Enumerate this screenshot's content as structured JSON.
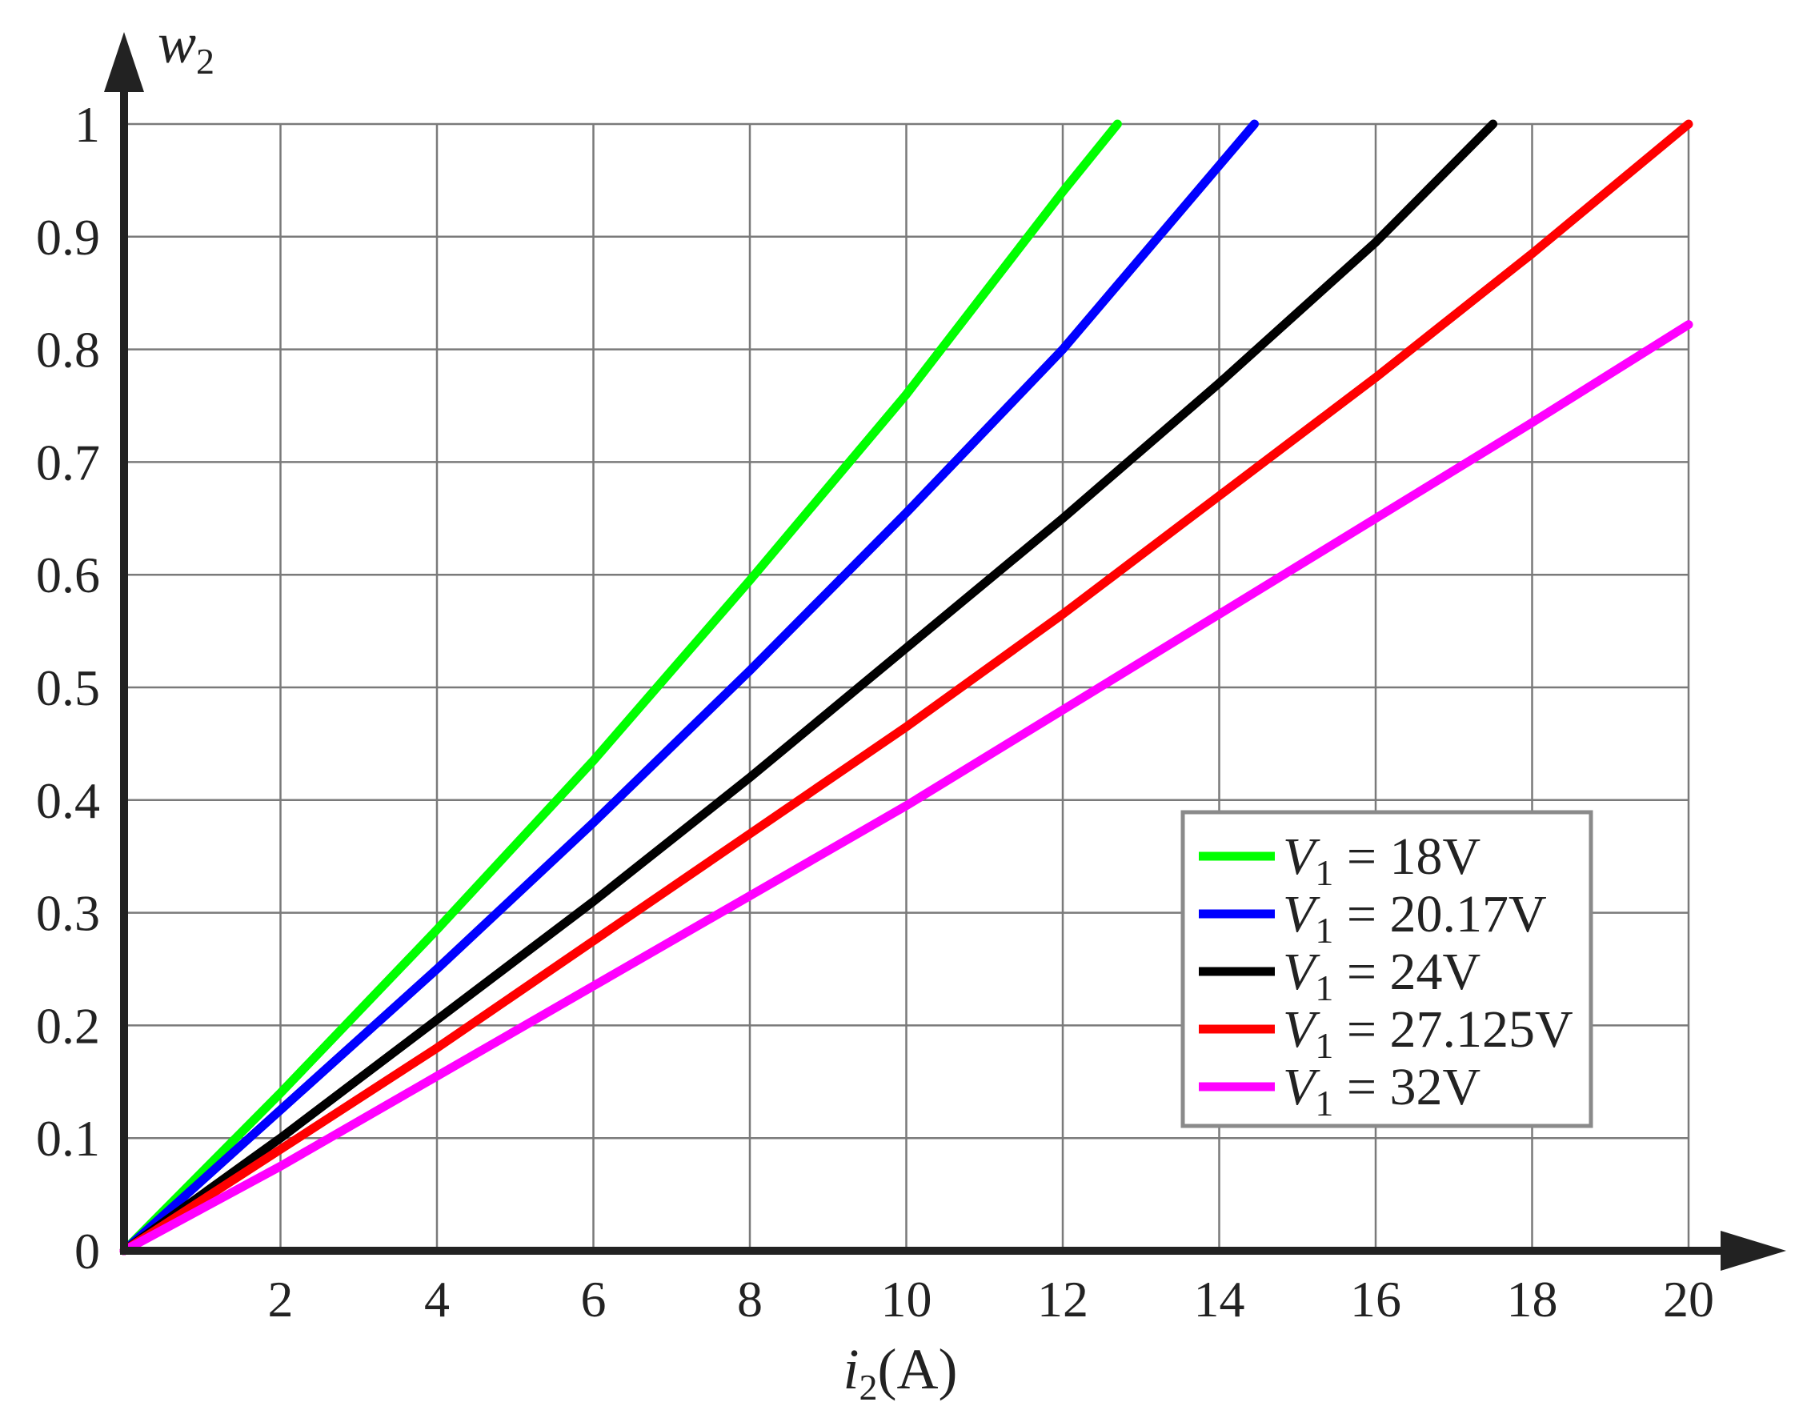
{
  "chart_data": {
    "type": "line",
    "xlabel": "i2(A)",
    "xlabel_main": "i",
    "xlabel_sub": "2",
    "xlabel_unit": "(A)",
    "ylabel": "w2",
    "ylabel_main": "w",
    "ylabel_sub": "2",
    "xlim": [
      0,
      20
    ],
    "ylim": [
      0,
      1
    ],
    "xticks": [
      2,
      4,
      6,
      8,
      10,
      12,
      14,
      16,
      18,
      20
    ],
    "xtick_labels": [
      "2",
      "4",
      "6",
      "8",
      "10",
      "12",
      "14",
      "16",
      "18",
      "20"
    ],
    "yticks": [
      0,
      0.1,
      0.2,
      0.3,
      0.4,
      0.5,
      0.6,
      0.7,
      0.8,
      0.9,
      1
    ],
    "ytick_labels": [
      "0",
      "0.1",
      "0.2",
      "0.3",
      "0.4",
      "0.5",
      "0.6",
      "0.7",
      "0.8",
      "0.9",
      "1"
    ],
    "grid": true,
    "legend_position": "lower-right",
    "series": [
      {
        "name": "V1 = 18V",
        "legend_main": "V",
        "legend_sub": "1",
        "legend_rest": " = 18V",
        "color": "#00ff00",
        "x": [
          0,
          2,
          4,
          6,
          8,
          10,
          12,
          12.7
        ],
        "y": [
          0,
          0.14,
          0.285,
          0.435,
          0.595,
          0.76,
          0.94,
          1.0
        ]
      },
      {
        "name": "V1 = 20.17V",
        "legend_main": "V",
        "legend_sub": "1",
        "legend_rest": " = 20.17V",
        "color": "#0000ff",
        "x": [
          0,
          2,
          4,
          6,
          8,
          10,
          12,
          14.45
        ],
        "y": [
          0,
          0.125,
          0.25,
          0.38,
          0.515,
          0.655,
          0.8,
          1.0
        ]
      },
      {
        "name": "V1 = 24V",
        "legend_main": "V",
        "legend_sub": "1",
        "legend_rest": " = 24V",
        "color": "#000000",
        "x": [
          0,
          2,
          4,
          6,
          8,
          10,
          12,
          14,
          16,
          17.5
        ],
        "y": [
          0,
          0.1,
          0.205,
          0.31,
          0.42,
          0.535,
          0.65,
          0.77,
          0.895,
          1.0
        ]
      },
      {
        "name": "V1 = 27.125V",
        "legend_main": "V",
        "legend_sub": "1",
        "legend_rest": " = 27.125V",
        "color": "#ff0000",
        "x": [
          0,
          2,
          4,
          6,
          8,
          10,
          12,
          14,
          16,
          18,
          20
        ],
        "y": [
          0,
          0.09,
          0.18,
          0.275,
          0.37,
          0.465,
          0.565,
          0.67,
          0.775,
          0.885,
          1.0
        ]
      },
      {
        "name": "V1 = 32V",
        "legend_main": "V",
        "legend_sub": "1",
        "legend_rest": " = 32V",
        "color": "#ff00ff",
        "x": [
          0,
          2,
          4,
          6,
          8,
          10,
          12,
          14,
          16,
          18,
          20
        ],
        "y": [
          0,
          0.075,
          0.155,
          0.235,
          0.315,
          0.395,
          0.48,
          0.565,
          0.65,
          0.735,
          0.822
        ]
      }
    ]
  }
}
